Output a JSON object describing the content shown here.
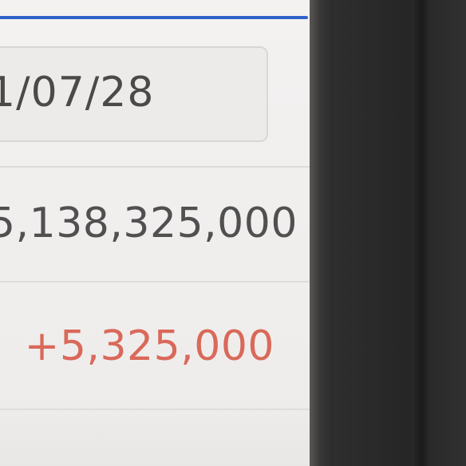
{
  "form": {
    "date_value": "1/07/28",
    "balance_value": "5,138,325,000",
    "change_value": "+5,325,000"
  },
  "colors": {
    "tab_indicator": "#2f62c9",
    "positive_change": "#d9695a",
    "text_primary": "#4a4a4a"
  }
}
